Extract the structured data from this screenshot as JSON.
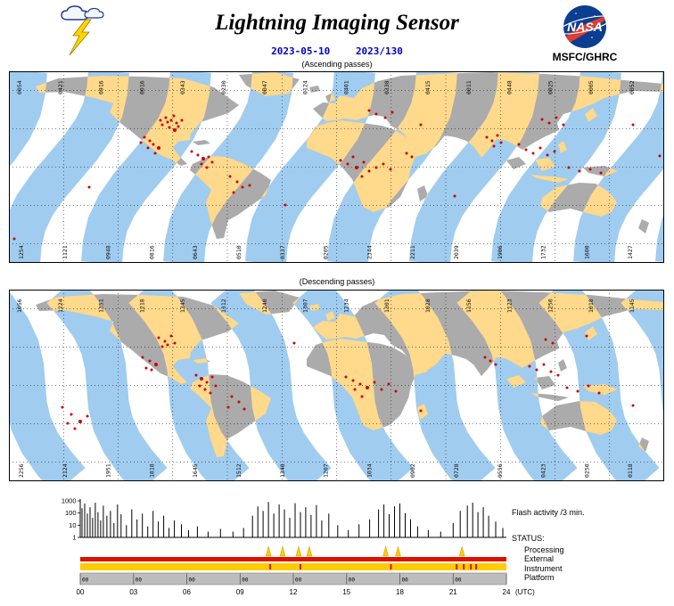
{
  "header": {
    "title": "Lightning Imaging Sensor",
    "date": "2023-05-10",
    "doy": "2023/130",
    "org": "MSFC/GHRC",
    "nasa_wordmark": "NASA"
  },
  "colors": {
    "accent_blue": "#0000CC",
    "swath_ocean": "#A0CCF0",
    "swath_land": "#FFD98C",
    "land": "#ABABAB",
    "flash": "#CC0000",
    "status_red": "#DD1100",
    "status_yellow": "#FFCC00",
    "status_gray": "#BDBDBD",
    "nasa_blue": "#0B3D91",
    "nasa_red": "#E03C31"
  },
  "maps": {
    "ascending": {
      "label": "(Ascending passes)",
      "top_orbits": [
        "0054",
        "0421",
        "0916",
        "0016",
        "0343",
        "0230",
        "0047",
        "0124",
        "0401",
        "0338",
        "0415",
        "0011",
        "0448",
        "0025",
        "0005",
        "0052"
      ],
      "bottom_orbits": [
        "1254",
        "1121",
        "0948",
        "0816",
        "0643",
        "0510",
        "0337",
        "0205",
        "2344",
        "2211",
        "2039",
        "1906",
        "1732",
        "1600",
        "1427"
      ],
      "flash_points": [
        [
          176,
          52
        ],
        [
          182,
          55
        ],
        [
          188,
          58
        ],
        [
          172,
          60
        ],
        [
          180,
          63
        ],
        [
          190,
          62
        ],
        [
          185,
          50
        ],
        [
          194,
          55
        ],
        [
          178,
          57
        ],
        [
          186,
          66,
          2
        ],
        [
          170,
          55
        ],
        [
          152,
          74
        ],
        [
          158,
          78
        ],
        [
          148,
          80
        ],
        [
          162,
          82
        ],
        [
          168,
          86,
          2
        ],
        [
          156,
          86
        ],
        [
          164,
          92
        ],
        [
          205,
          90
        ],
        [
          212,
          94
        ],
        [
          218,
          98,
          2
        ],
        [
          224,
          96
        ],
        [
          228,
          102
        ],
        [
          216,
          104
        ],
        [
          222,
          108
        ],
        [
          248,
          118
        ],
        [
          256,
          124
        ],
        [
          262,
          130
        ],
        [
          252,
          136
        ],
        [
          270,
          128
        ],
        [
          372,
          100
        ],
        [
          380,
          104
        ],
        [
          390,
          108,
          2
        ],
        [
          398,
          102
        ],
        [
          404,
          112
        ],
        [
          412,
          108
        ],
        [
          396,
          118
        ],
        [
          386,
          96
        ],
        [
          420,
          104
        ],
        [
          428,
          110
        ],
        [
          446,
          92
        ],
        [
          452,
          96
        ],
        [
          404,
          44
        ],
        [
          412,
          48
        ],
        [
          422,
          52
        ],
        [
          430,
          46
        ],
        [
          462,
          60
        ],
        [
          536,
          74
        ],
        [
          542,
          78
        ],
        [
          548,
          72
        ],
        [
          552,
          80
        ],
        [
          544,
          84
        ],
        [
          572,
          82
        ],
        [
          580,
          88
        ],
        [
          588,
          92
        ],
        [
          596,
          86
        ],
        [
          604,
          94
        ],
        [
          612,
          90
        ],
        [
          598,
          54
        ],
        [
          606,
          58
        ],
        [
          614,
          52
        ],
        [
          622,
          60
        ],
        [
          628,
          108
        ],
        [
          640,
          112
        ],
        [
          652,
          110
        ],
        [
          664,
          114
        ],
        [
          90,
          130
        ],
        [
          310,
          150
        ],
        [
          500,
          140
        ],
        [
          700,
          60
        ],
        [
          6,
          188
        ],
        [
          730,
          95
        ]
      ]
    },
    "descending": {
      "label": "(Descending passes)",
      "top_orbits": [
        "1056",
        "1224",
        "1351",
        "1218",
        "1345",
        "1312",
        "1240",
        "1307",
        "1234",
        "1301",
        "1028",
        "1156",
        "1123",
        "1250",
        "1018",
        "1145"
      ],
      "bottom_orbits": [
        "2256",
        "2124",
        "1951",
        "1818",
        "1645",
        "1512",
        "1340",
        "1207",
        "1034",
        "0902",
        "0728",
        "0556",
        "0423",
        "0250",
        "0118"
      ],
      "flash_points": [
        [
          168,
          54
        ],
        [
          175,
          58
        ],
        [
          182,
          52
        ],
        [
          178,
          62
        ],
        [
          186,
          60
        ],
        [
          172,
          64
        ],
        [
          150,
          76
        ],
        [
          158,
          80
        ],
        [
          165,
          84,
          2
        ],
        [
          160,
          90
        ],
        [
          154,
          88
        ],
        [
          210,
          96
        ],
        [
          216,
          100,
          2
        ],
        [
          222,
          104
        ],
        [
          228,
          98
        ],
        [
          214,
          108
        ],
        [
          220,
          112
        ],
        [
          226,
          116
        ],
        [
          232,
          108
        ],
        [
          250,
          120
        ],
        [
          258,
          126
        ],
        [
          246,
          132
        ],
        [
          264,
          134
        ],
        [
          378,
          98
        ],
        [
          386,
          102
        ],
        [
          394,
          106
        ],
        [
          402,
          110,
          2
        ],
        [
          410,
          104
        ],
        [
          418,
          112
        ],
        [
          426,
          106
        ],
        [
          434,
          114
        ],
        [
          396,
          120
        ],
        [
          388,
          112
        ],
        [
          462,
          136
        ],
        [
          534,
          76
        ],
        [
          540,
          80
        ],
        [
          546,
          84
        ],
        [
          584,
          86
        ],
        [
          592,
          90
        ],
        [
          600,
          84
        ],
        [
          608,
          92
        ],
        [
          616,
          96
        ],
        [
          602,
          56
        ],
        [
          610,
          60
        ],
        [
          648,
          52
        ],
        [
          626,
          110
        ],
        [
          638,
          114
        ],
        [
          650,
          108
        ],
        [
          662,
          116
        ],
        [
          60,
          132
        ],
        [
          70,
          140
        ],
        [
          80,
          148,
          2
        ],
        [
          66,
          150
        ],
        [
          74,
          156
        ],
        [
          88,
          142
        ],
        [
          320,
          60
        ],
        [
          700,
          130
        ]
      ]
    }
  },
  "status": {
    "heading": "STATUS:",
    "rows": [
      "Processing",
      "External",
      "Instrument",
      "Platform"
    ],
    "processing_marks": [
      10.6,
      11.4,
      12.3,
      12.9,
      17.2,
      17.9,
      21.5
    ],
    "instrument_marks": [
      10.7,
      12.4,
      17.5,
      21.2,
      21.6,
      22.0,
      22.3
    ]
  },
  "chart_data": {
    "type": "line",
    "title": "Flash activity /3 min.",
    "y_scale": "log",
    "ylim": [
      1,
      1000
    ],
    "yticks": [
      1000,
      100,
      10,
      1
    ],
    "xlim_hours": [
      0,
      24
    ],
    "xticks": [
      "00",
      "03",
      "06",
      "09",
      "12",
      "15",
      "18",
      "21",
      "24"
    ],
    "x_unit": "(UTC)",
    "platform_tick_label": "00",
    "spikes": [
      [
        0.1,
        250
      ],
      [
        0.25,
        600
      ],
      [
        0.4,
        90
      ],
      [
        0.55,
        300
      ],
      [
        0.7,
        40
      ],
      [
        0.85,
        700
      ],
      [
        1.0,
        120
      ],
      [
        1.15,
        25
      ],
      [
        1.3,
        400
      ],
      [
        1.5,
        60
      ],
      [
        1.7,
        150
      ],
      [
        1.9,
        15
      ],
      [
        2.1,
        500
      ],
      [
        2.3,
        80
      ],
      [
        2.6,
        10
      ],
      [
        2.9,
        200
      ],
      [
        3.2,
        30
      ],
      [
        3.5,
        90
      ],
      [
        3.8,
        8
      ],
      [
        4.1,
        150
      ],
      [
        4.4,
        20
      ],
      [
        4.7,
        60
      ],
      [
        5.0,
        6
      ],
      [
        5.3,
        25
      ],
      [
        5.7,
        12
      ],
      [
        6.1,
        4
      ],
      [
        6.6,
        8
      ],
      [
        7.2,
        3
      ],
      [
        7.9,
        5
      ],
      [
        8.6,
        3
      ],
      [
        9.2,
        6
      ],
      [
        9.7,
        60
      ],
      [
        10.0,
        350
      ],
      [
        10.3,
        150
      ],
      [
        10.6,
        800
      ],
      [
        10.9,
        90
      ],
      [
        11.2,
        500
      ],
      [
        11.5,
        200
      ],
      [
        11.8,
        40
      ],
      [
        12.1,
        650
      ],
      [
        12.4,
        120
      ],
      [
        12.7,
        300
      ],
      [
        13.0,
        70
      ],
      [
        13.3,
        450
      ],
      [
        13.6,
        25
      ],
      [
        14.0,
        90
      ],
      [
        14.5,
        10
      ],
      [
        15.1,
        4
      ],
      [
        15.7,
        12
      ],
      [
        16.3,
        30
      ],
      [
        16.8,
        200
      ],
      [
        17.1,
        500
      ],
      [
        17.4,
        80
      ],
      [
        17.7,
        350
      ],
      [
        18.0,
        600
      ],
      [
        18.3,
        100
      ],
      [
        18.6,
        30
      ],
      [
        19.0,
        8
      ],
      [
        19.6,
        4
      ],
      [
        20.3,
        3
      ],
      [
        21.0,
        15
      ],
      [
        21.4,
        150
      ],
      [
        21.8,
        400
      ],
      [
        22.1,
        700
      ],
      [
        22.4,
        120
      ],
      [
        22.7,
        300
      ],
      [
        23.0,
        60
      ],
      [
        23.4,
        20
      ],
      [
        23.8,
        6
      ]
    ]
  }
}
